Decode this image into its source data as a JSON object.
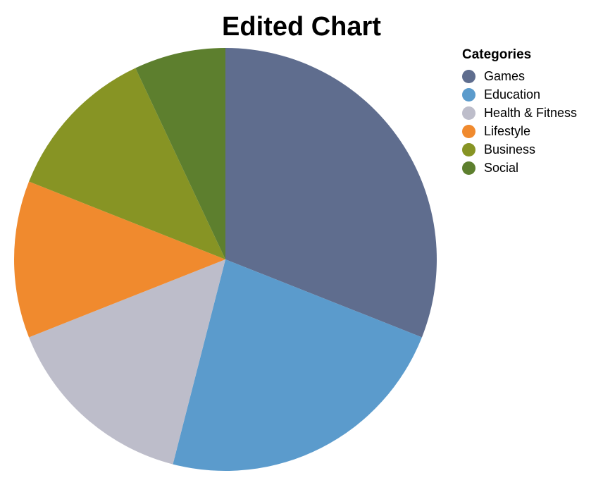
{
  "chart_data": {
    "type": "pie",
    "title": "Edited Chart",
    "legend_title": "Categories",
    "legend_position": "right",
    "slices": [
      {
        "label": "Games",
        "value": 31,
        "color": "#5f6d8e"
      },
      {
        "label": "Education",
        "value": 23,
        "color": "#5b9bcc"
      },
      {
        "label": "Health & Fitness",
        "value": 15,
        "color": "#bdbdca"
      },
      {
        "label": "Lifestyle",
        "value": 12,
        "color": "#f08a2e"
      },
      {
        "label": "Business",
        "value": 12,
        "color": "#879424"
      },
      {
        "label": "Social",
        "value": 7,
        "color": "#5d7f2e"
      }
    ]
  }
}
